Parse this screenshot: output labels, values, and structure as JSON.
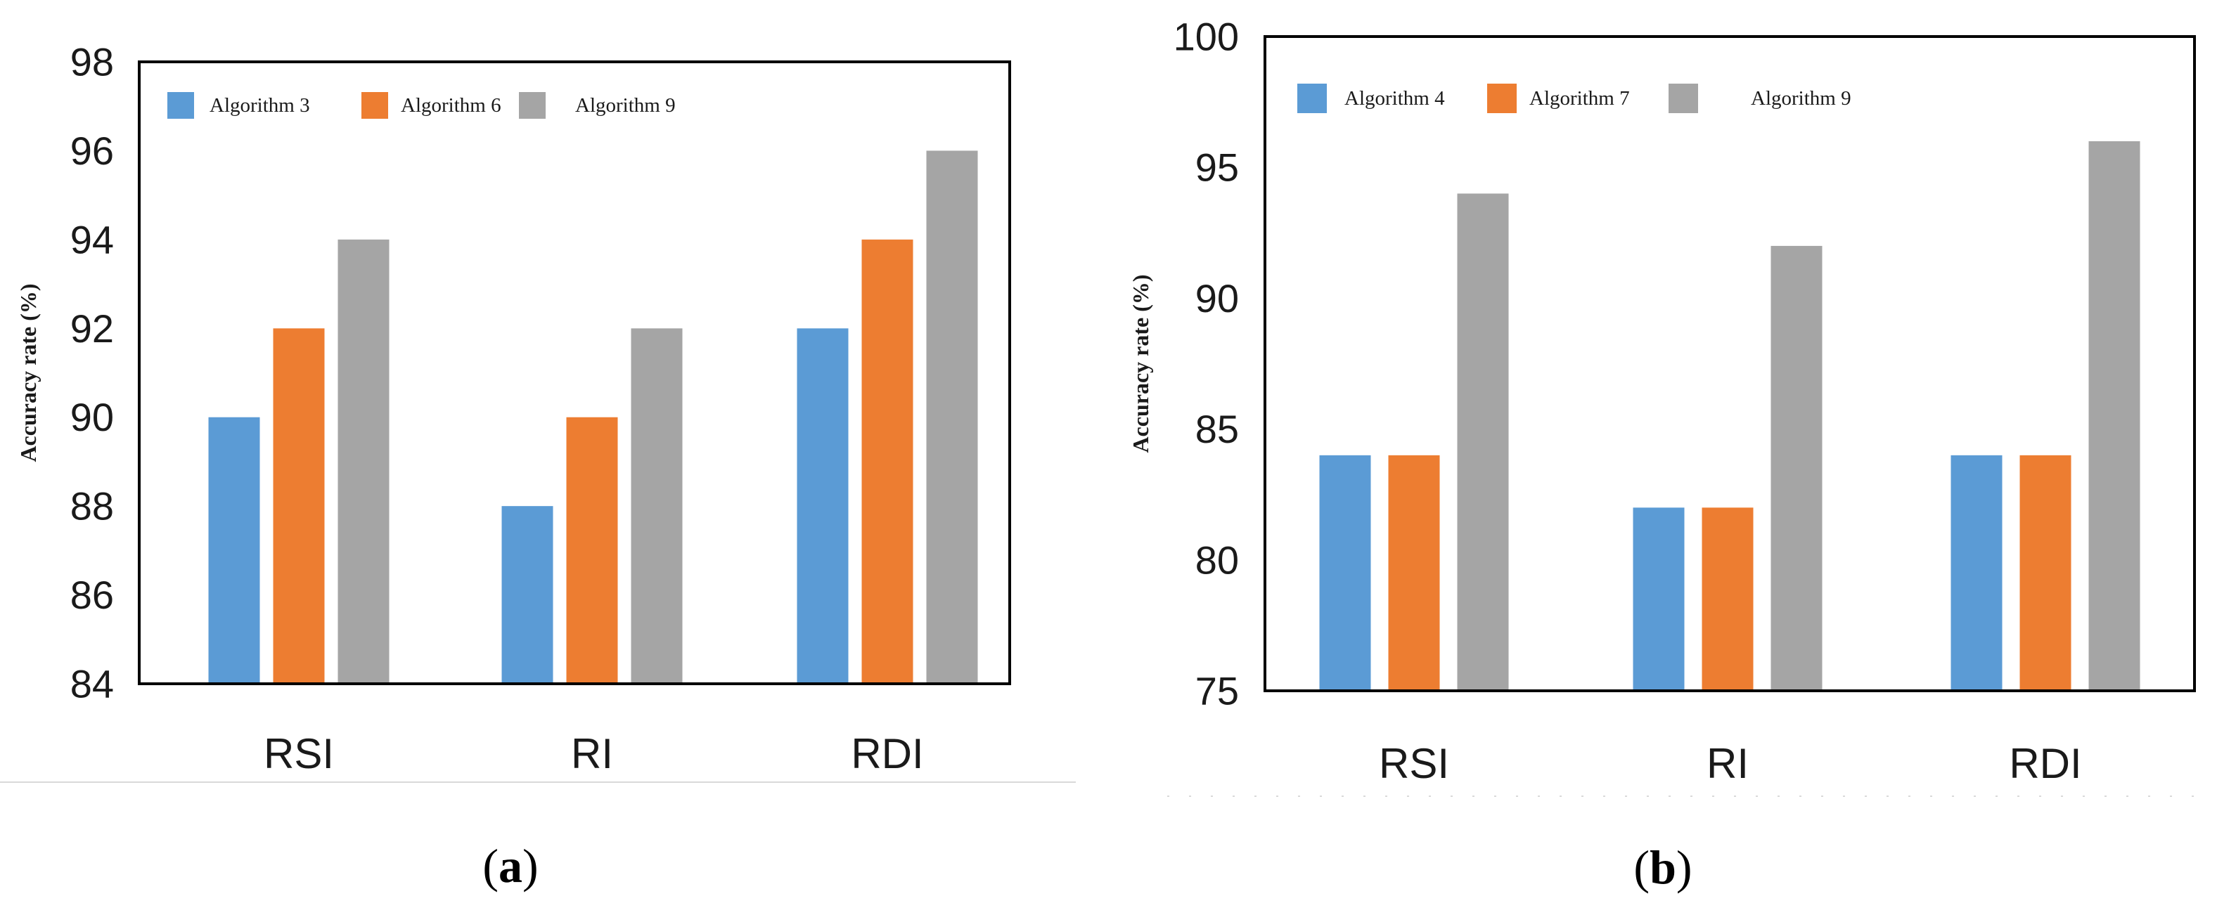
{
  "chart_data": [
    {
      "type": "bar",
      "caption_letter": "a",
      "categories": [
        "RSI",
        "RI",
        "RDI"
      ],
      "series": [
        {
          "name": "Algorithm 3",
          "values": [
            90,
            88,
            92
          ],
          "color": "#5B9BD5"
        },
        {
          "name": "Algorithm 6",
          "values": [
            92,
            90,
            94
          ],
          "color": "#ED7D31"
        },
        {
          "name": "Algorithm 9",
          "values": [
            94,
            92,
            96
          ],
          "color": "#A5A5A5"
        }
      ],
      "ylabel": "Accuracy rate (%)",
      "xlabel": "",
      "ylim": [
        84,
        98
      ],
      "yticks": [
        84,
        86,
        88,
        90,
        92,
        94,
        96,
        98
      ],
      "grid": false,
      "legend_position": "top-left"
    },
    {
      "type": "bar",
      "caption_letter": "b",
      "categories": [
        "RSI",
        "RI",
        "RDI"
      ],
      "series": [
        {
          "name": "Algorithm 4",
          "values": [
            84,
            82,
            84
          ],
          "color": "#5B9BD5"
        },
        {
          "name": "Algorithm 7",
          "values": [
            84,
            82,
            84
          ],
          "color": "#ED7D31"
        },
        {
          "name": "Algorithm 9",
          "values": [
            94,
            92,
            96
          ],
          "color": "#A5A5A5"
        }
      ],
      "ylabel": "Accuracy rate (%)",
      "xlabel": "",
      "ylim": [
        75,
        100
      ],
      "yticks": [
        75,
        80,
        85,
        90,
        95,
        100
      ],
      "grid": false,
      "legend_position": "top-left"
    }
  ]
}
